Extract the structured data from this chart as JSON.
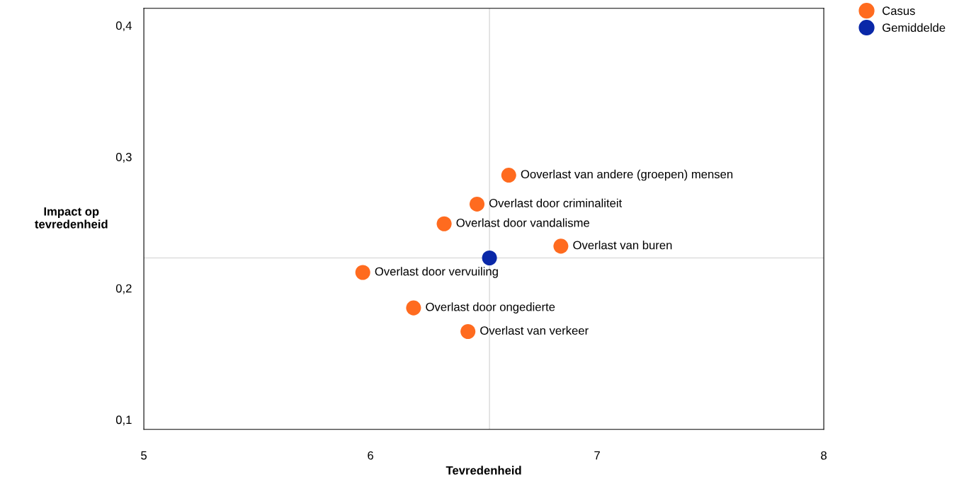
{
  "chart_data": {
    "type": "scatter",
    "xlabel": "Tevredenheid",
    "ylabel": "Impact op\ntevredenheid",
    "xlim": [
      5,
      8
    ],
    "xticks": [
      5,
      6,
      7,
      8
    ],
    "ylim": [
      0.0926,
      0.413
    ],
    "yticks": [
      {
        "value": 0.1,
        "label": "0,1"
      },
      {
        "value": 0.2,
        "label": "0,2"
      },
      {
        "value": 0.3,
        "label": "0,3"
      },
      {
        "value": 0.4,
        "label": "0,4"
      }
    ],
    "series": [
      {
        "name": "Casus",
        "color": "#ff6b1f",
        "x": [
          6.61,
          6.47,
          6.325,
          6.84,
          5.966,
          6.19,
          6.43
        ],
        "values": [
          0.286,
          0.264,
          0.249,
          0.232,
          0.212,
          0.185,
          0.167
        ]
      },
      {
        "name": "Gemiddelde",
        "color": "#0a28a8",
        "x": [
          6.525
        ],
        "values": [
          0.223
        ]
      }
    ],
    "annotations": [
      {
        "text": "Ooverlast van andere (groepen) mensen",
        "x": 6.61,
        "y": 0.286
      },
      {
        "text": "Overlast door criminaliteit",
        "x": 6.47,
        "y": 0.264
      },
      {
        "text": "Overlast door vandalisme",
        "x": 6.325,
        "y": 0.249
      },
      {
        "text": "Overlast van buren",
        "x": 6.84,
        "y": 0.232
      },
      {
        "text": "Overlast door vervuiling",
        "x": 5.966,
        "y": 0.212
      },
      {
        "text": "Overlast door ongedierte",
        "x": 6.19,
        "y": 0.185
      },
      {
        "text": "Overlast van verkeer",
        "x": 6.43,
        "y": 0.167
      }
    ],
    "ref_lines": [
      {
        "axis": "x",
        "value": 6.525,
        "color": "#d0d0d0"
      },
      {
        "axis": "y",
        "value": 0.223,
        "color": "#d0d0d0"
      }
    ],
    "marker": "circle",
    "grid": false,
    "legend": "top right"
  }
}
